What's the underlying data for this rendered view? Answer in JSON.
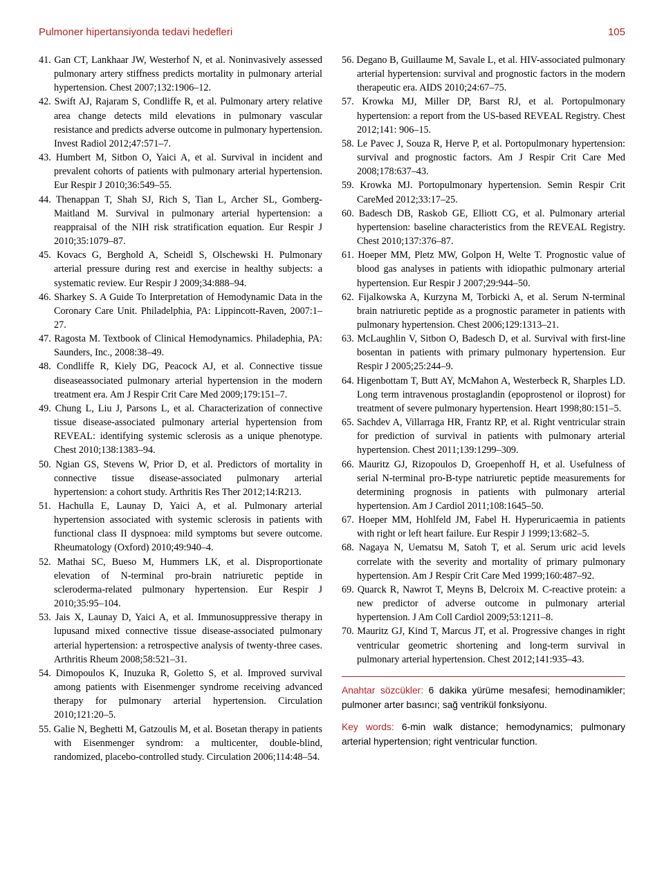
{
  "header": {
    "title": "Pulmoner hipertansiyonda tedavi hedefleri",
    "page": "105"
  },
  "references": [
    {
      "n": "41.",
      "text": "Gan CT, Lankhaar JW, Westerhof N, et al. Noninvasively assessed pulmonary artery stiffness predicts mortality in pulmonary arterial hypertension. Chest 2007;132:1906–12."
    },
    {
      "n": "42.",
      "text": "Swift AJ, Rajaram S, Condliffe R, et al. Pulmonary artery relative area change detects mild elevations in pulmonary vascular resistance and predicts adverse outcome in pulmonary hypertension. Invest Radiol 2012;47:571–7."
    },
    {
      "n": "43.",
      "text": "Humbert M, Sitbon O, Yaici A, et al. Survival in incident and prevalent cohorts of patients with pulmonary arterial hypertension. Eur Respir J 2010;36:549–55."
    },
    {
      "n": "44.",
      "text": "Thenappan T, Shah SJ, Rich S, Tian L, Archer SL, Gomberg-Maitland M. Survival in pulmonary arterial hypertension: a reappraisal of the NIH risk stratification equation. Eur Respir J 2010;35:1079–87."
    },
    {
      "n": "45.",
      "text": "Kovacs G, Berghold A, Scheidl S, Olschewski H. Pulmonary arterial pressure during rest and exercise in healthy subjects: a systematic review. Eur Respir J 2009;34:888–94."
    },
    {
      "n": "46.",
      "text": "Sharkey S. A Guide To Interpretation of Hemodynamic Data in the Coronary Care Unit. Philadelphia, PA: Lippincott-Raven, 2007:1–27."
    },
    {
      "n": "47.",
      "text": "Ragosta M. Textbook of Clinical Hemodynamics. Philadephia, PA: Saunders, Inc., 2008:38–49."
    },
    {
      "n": "48.",
      "text": "Condliffe R, Kiely DG, Peacock AJ, et al. Connective tissue diseaseassociated pulmonary arterial hypertension in the modern treatment era. Am J Respir Crit Care Med 2009;179:151–7."
    },
    {
      "n": "49.",
      "text": "Chung L, Liu J, Parsons L, et al. Characterization of connective tissue disease-associated pulmonary arterial hypertension from REVEAL: identifying systemic sclerosis as a unique phenotype. Chest 2010;138:1383–94."
    },
    {
      "n": "50.",
      "text": "Ngian GS, Stevens W, Prior D, et al. Predictors of mortality in connective tissue disease-associated pulmonary arterial hypertension: a cohort study. Arthritis Res Ther 2012;14:R213."
    },
    {
      "n": "51.",
      "text": "Hachulla E, Launay D, Yaici A, et al. Pulmonary arterial hypertension associated with systemic sclerosis in patients with functional class II dyspnoea: mild symptoms but severe outcome. Rheumatology (Oxford) 2010;49:940–4."
    },
    {
      "n": "52.",
      "text": "Mathai SC, Bueso M, Hummers LK, et al. Disproportionate elevation of N-terminal pro-brain natriuretic peptide in scleroderma-related pulmonary hypertension. Eur Respir J 2010;35:95–104."
    },
    {
      "n": "53.",
      "text": "Jais X, Launay D, Yaici A, et al. Immunosuppressive therapy in lupusand mixed connective tissue disease-associated pulmonary arterial hypertension: a retrospective analysis of twenty-three cases. Arthritis Rheum 2008;58:521–31."
    },
    {
      "n": "54.",
      "text": "Dimopoulos K, Inuzuka R, Goletto S, et al. Improved survival among patients with Eisenmenger syndrome receiving advanced therapy for pulmonary arterial hypertension. Circulation 2010;121:20–5."
    },
    {
      "n": "55.",
      "text": "Galie N, Beghetti M, Gatzoulis M, et al. Bosetan therapy in patients with Eisenmenger syndrom: a multicenter, double-blind, randomized, placebo-controlled study. Circulation 2006;114:48–54."
    },
    {
      "n": "56.",
      "text": "Degano B, Guillaume M, Savale L, et al. HIV-associated pulmonary arterial hypertension: survival and prognostic factors in the modern therapeutic era. AIDS 2010;24:67–75."
    },
    {
      "n": "57.",
      "text": "Krowka MJ, Miller DP, Barst RJ, et al. Portopulmonary hypertension: a report from the US-based REVEAL Registry. Chest 2012;141: 906–15."
    },
    {
      "n": "58.",
      "text": "Le Pavec J, Souza R, Herve P, et al. Portopulmonary hypertension: survival and prognostic factors. Am J Respir Crit Care Med 2008;178:637–43."
    },
    {
      "n": "59.",
      "text": "Krowka MJ. Portopulmonary hypertension. Semin Respir Crit CareMed 2012;33:17–25."
    },
    {
      "n": "60.",
      "text": "Badesch DB, Raskob GE, Elliott CG, et al. Pulmonary arterial hypertension: baseline characteristics from the REVEAL Registry. Chest 2010;137:376–87."
    },
    {
      "n": "61.",
      "text": "Hoeper MM, Pletz MW, Golpon H, Welte T. Prognostic value of blood gas analyses in patients with idiopathic pulmonary arterial hypertension. Eur Respir J 2007;29:944–50."
    },
    {
      "n": "62.",
      "text": "Fijalkowska A, Kurzyna M, Torbicki A, et al. Serum N-terminal brain natriuretic peptide as a prognostic parameter in patients with pulmonary hypertension. Chest 2006;129:1313–21."
    },
    {
      "n": "63.",
      "text": "McLaughlin V, Sitbon O, Badesch D, et al. Survival with first-line bosentan in patients with primary pulmonary hypertension. Eur Respir J 2005;25:244–9."
    },
    {
      "n": "64.",
      "text": "Higenbottam T, Butt AY, McMahon A, Westerbeck R, Sharples LD. Long term intravenous prostaglandin (epoprostenol or iloprost) for treatment of severe pulmonary hypertension. Heart 1998;80:151–5."
    },
    {
      "n": "65.",
      "text": "Sachdev A, Villarraga HR, Frantz RP, et al. Right ventricular strain for prediction of survival in patients with pulmonary arterial hypertension. Chest 2011;139:1299–309."
    },
    {
      "n": "66.",
      "text": "Mauritz GJ, Rizopoulos D, Groepenhoff H, et al. Usefulness of serial N-terminal pro-B-type natriuretic peptide measurements for determining prognosis in patients with pulmonary arterial hypertension. Am J Cardiol 2011;108:1645–50."
    },
    {
      "n": "67.",
      "text": "Hoeper MM, Hohlfeld JM, Fabel H. Hyperuricaemia in patients with right or left heart failure. Eur Respir J 1999;13:682–5."
    },
    {
      "n": "68.",
      "text": "Nagaya N, Uematsu M, Satoh T, et al. Serum uric acid levels correlate with the severity and mortality of primary pulmonary hypertension. Am J Respir Crit Care Med 1999;160:487–92."
    },
    {
      "n": "69.",
      "text": "Quarck R, Nawrot T, Meyns B, Delcroix M. C-reactive protein: a new predictor of adverse outcome in pulmonary arterial hypertension. J Am Coll Cardiol 2009;53:1211–8."
    },
    {
      "n": "70.",
      "text": "Mauritz GJ, Kind T, Marcus JT, et al. Progressive changes in right ventricular geometric shortening and long-term survival in pulmonary arterial hypertension. Chest 2012;141:935–43."
    }
  ],
  "keywords_tr": {
    "label": "Anahtar sözcükler:",
    "text": " 6 dakika yürüme mesafesi; hemodinamikler; pulmoner arter basıncı; sağ ventrikül fonksiyonu."
  },
  "keywords_en": {
    "label": "Key words:",
    "text": " 6-min walk distance; hemodynamics; pulmonary arterial hypertension; right ventricular function."
  }
}
